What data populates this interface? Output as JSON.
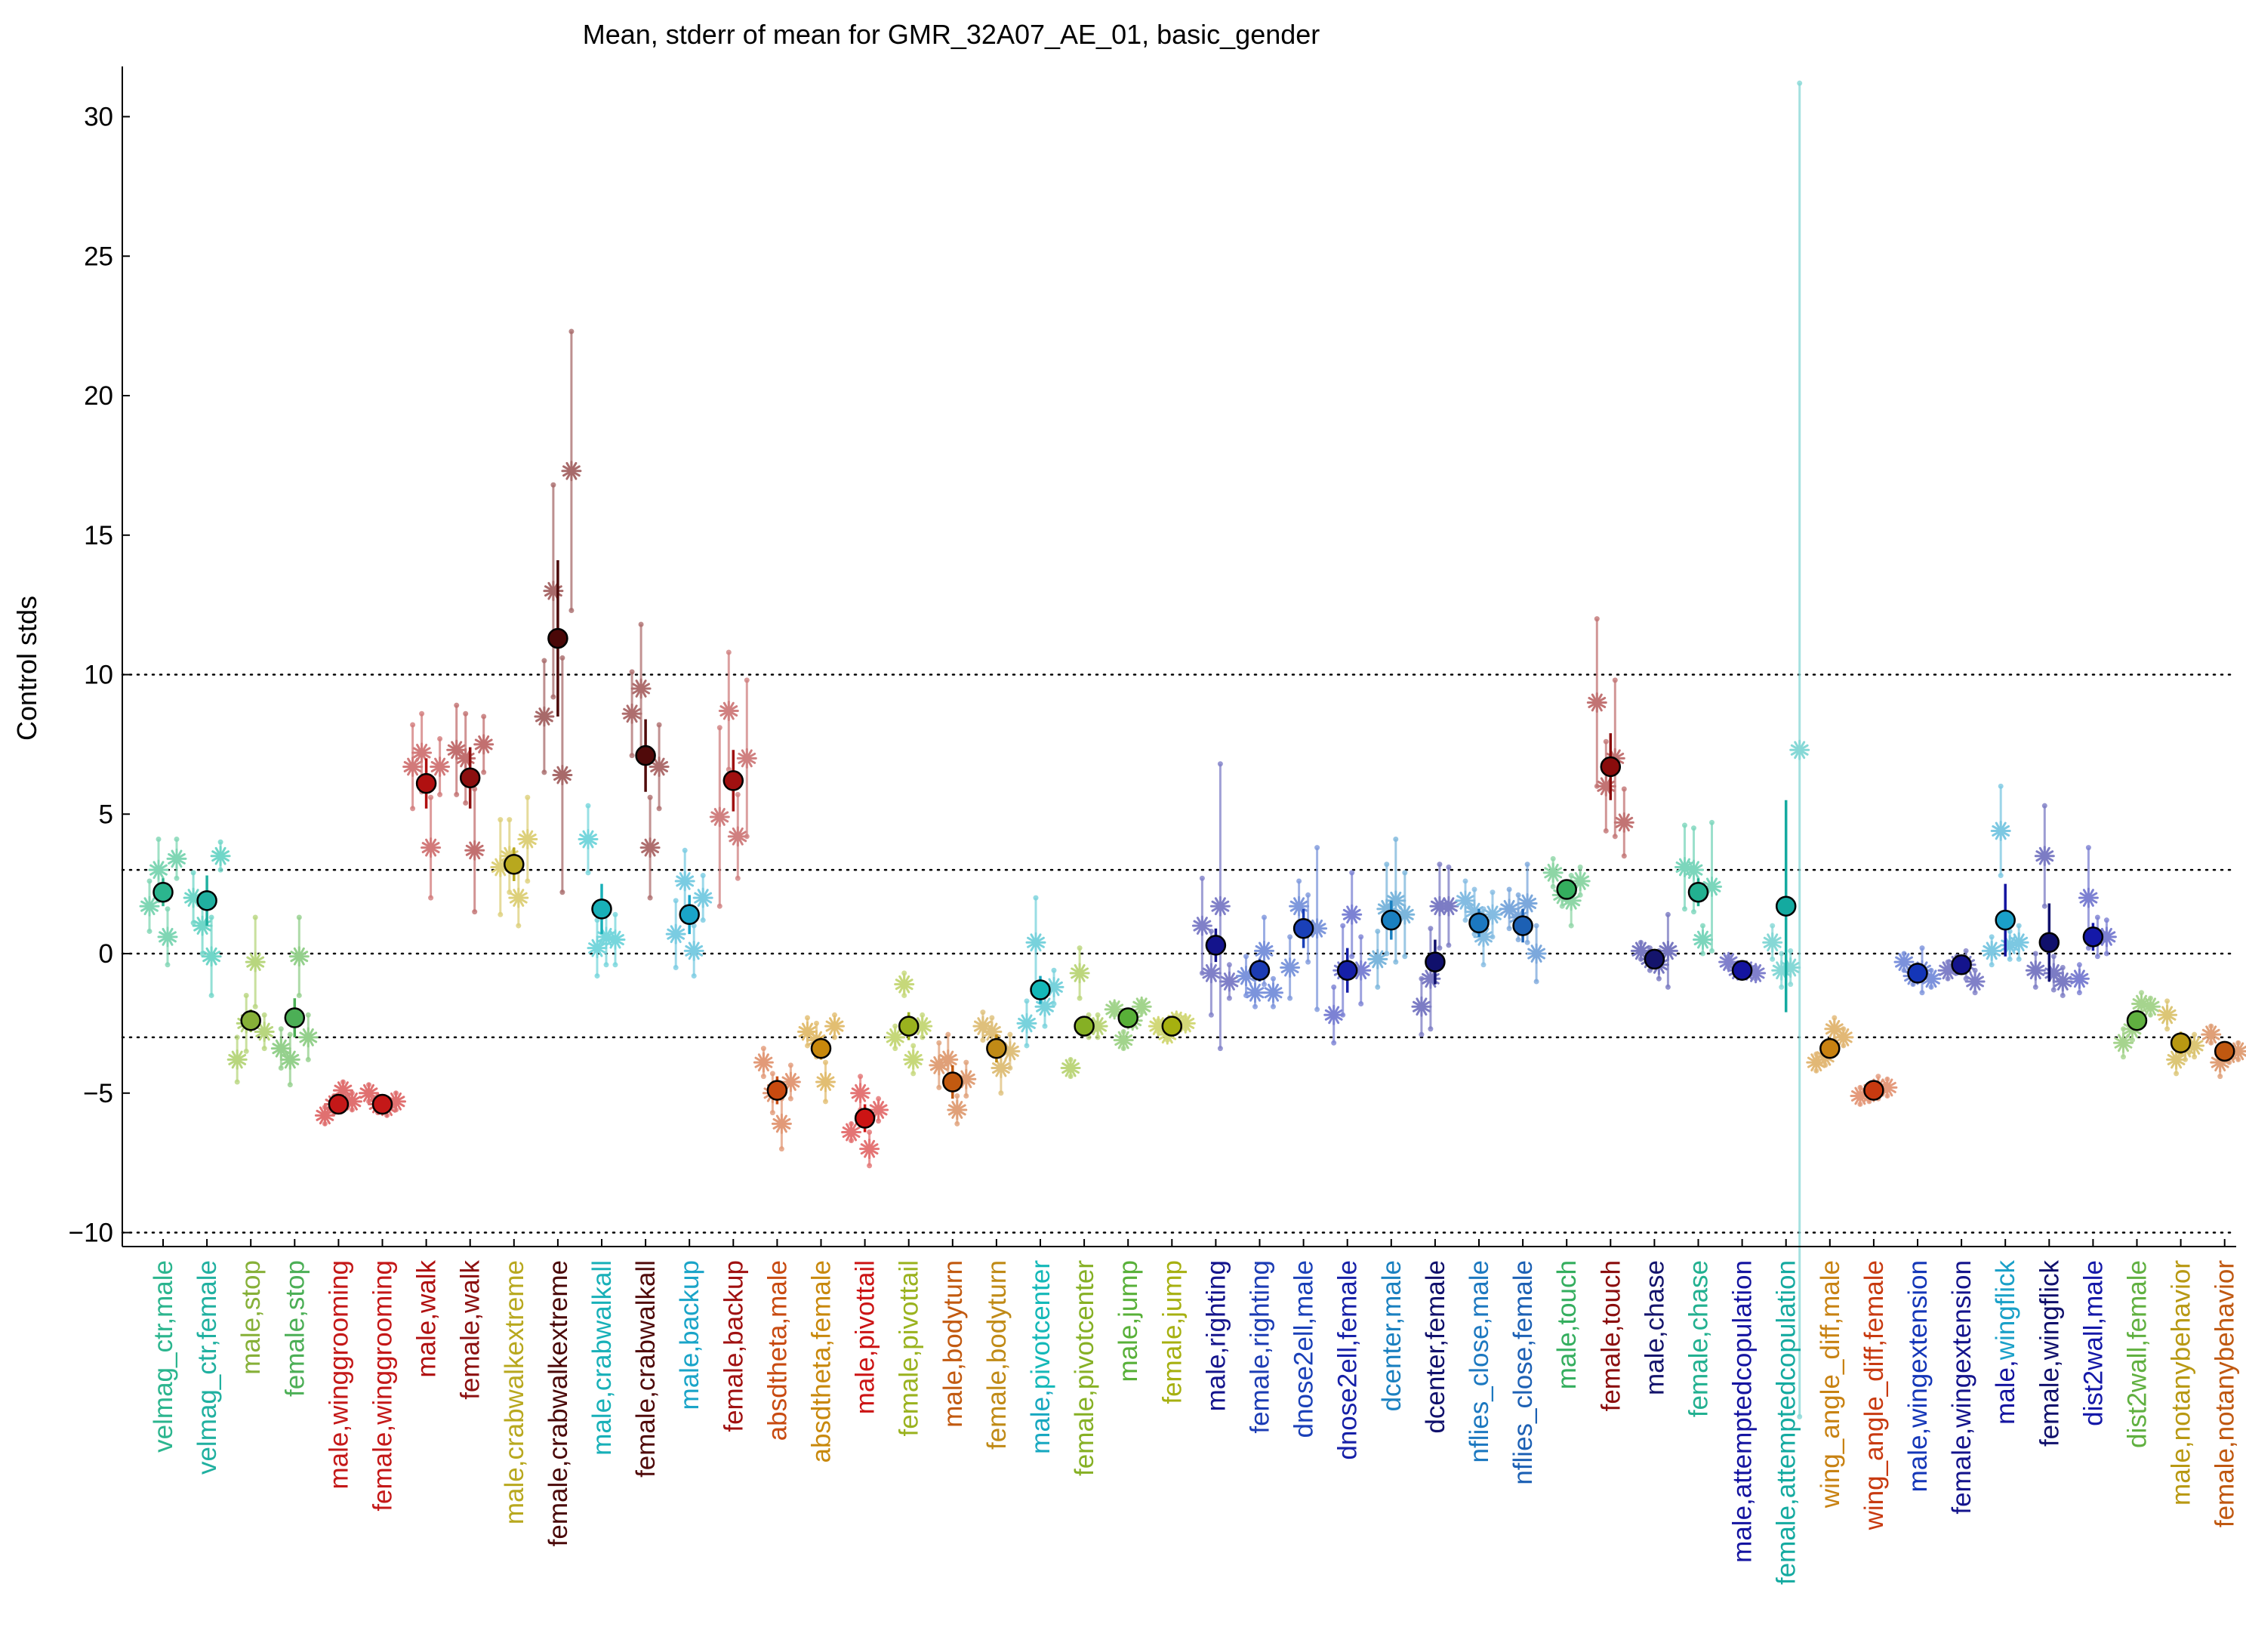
{
  "chart_data": {
    "type": "scatter",
    "title": "Mean, stderr of mean for GMR_32A07_AE_01, basic_gender",
    "xlabel": "",
    "ylabel": "Control stds",
    "ylim": [
      -10.5,
      31.8
    ],
    "yticks": [
      -10,
      -5,
      0,
      5,
      10,
      15,
      20,
      25,
      30
    ],
    "reference_lines": [
      -10,
      -3,
      0,
      3,
      10
    ],
    "grid": false,
    "categories": [
      {
        "label": [
          "velmag_ctr,male"
        ],
        "colors": [
          "#2bb58e"
        ],
        "mean": 2.2,
        "sem": 0.5,
        "sample_color": "#7fd6b4",
        "sample_means": [
          1.7,
          3.0,
          0.6,
          3.4
        ],
        "sample_err": [
          0.9,
          1.1,
          1.0,
          0.7
        ]
      },
      {
        "label": [
          "velmag_ctr,female"
        ],
        "colors": [
          "#20b0a0"
        ],
        "mean": 1.9,
        "sem": 0.9,
        "sample_color": "#70d6c8",
        "sample_means": [
          2.0,
          1.0,
          -0.1,
          3.5
        ],
        "sample_err": [
          0.9,
          1.0,
          1.4,
          0.5
        ]
      },
      {
        "label": [
          "male,stop"
        ],
        "colors": [
          "#86b038"
        ],
        "mean": -2.4,
        "sem": 0.4,
        "sample_color": "#b8d67e",
        "sample_means": [
          -3.8,
          -2.5,
          -0.3,
          -2.8
        ],
        "sample_err": [
          0.8,
          1.0,
          1.6,
          0.6
        ]
      },
      {
        "label": [
          "female,stop"
        ],
        "colors": [
          "#4caf56"
        ],
        "mean": -2.3,
        "sem": 0.7,
        "sample_color": "#94d08c",
        "sample_means": [
          -3.4,
          -3.8,
          -0.1,
          -3.0
        ],
        "sample_err": [
          0.7,
          0.9,
          1.4,
          0.8
        ]
      },
      {
        "label": [
          "male,winggrooming"
        ],
        "colors": [
          "#c41818"
        ],
        "mean": -5.4,
        "sem": 0.2,
        "sample_color": "#e07070",
        "sample_means": [
          -5.8,
          -5.4,
          -4.9,
          -5.3
        ],
        "sample_err": [
          0.3,
          0.3,
          0.3,
          0.3
        ]
      },
      {
        "label": [
          "female,winggrooming"
        ],
        "colors": [
          "#c41818"
        ],
        "mean": -5.4,
        "sem": 0.2,
        "sample_color": "#e07070",
        "sample_means": [
          -5.0,
          -5.4,
          -5.5,
          -5.3
        ],
        "sample_err": [
          0.3,
          0.3,
          0.3,
          0.3
        ]
      },
      {
        "label": [
          "male,walk"
        ],
        "colors": [
          "#b01010"
        ],
        "mean": 6.1,
        "sem": 0.9,
        "sample_color": "#d27a7a",
        "sample_means": [
          6.7,
          7.2,
          3.8,
          6.7
        ],
        "sample_err": [
          1.5,
          1.4,
          1.8,
          1.0
        ]
      },
      {
        "label": [
          "female,walk"
        ],
        "colors": [
          "#8c1010"
        ],
        "mean": 6.3,
        "sem": 1.1,
        "sample_color": "#c27070",
        "sample_means": [
          7.3,
          7.0,
          3.7,
          7.5
        ],
        "sample_err": [
          1.6,
          1.6,
          2.2,
          1.0
        ]
      },
      {
        "label": [
          "male,crabwalkextreme"
        ],
        "colors": [
          "#b8a81e"
        ],
        "mean": 3.2,
        "sem": 0.6,
        "sample_color": "#ddd07a",
        "sample_means": [
          3.1,
          3.5,
          2.0,
          4.1
        ],
        "sample_err": [
          1.7,
          1.3,
          1.0,
          1.5
        ]
      },
      {
        "label": [
          "female,crabwalkextreme"
        ],
        "colors": [
          "#4a0808"
        ],
        "mean": 11.3,
        "sem": 2.8,
        "sample_color": "#a86a6a",
        "sample_means": [
          8.5,
          13.0,
          6.4,
          17.3
        ],
        "sample_err": [
          2.0,
          3.8,
          4.2,
          5.0
        ]
      },
      {
        "label": [
          "male,crabwalkall"
        ],
        "colors": [
          "#18b0b8"
        ],
        "mean": 1.6,
        "sem": 0.9,
        "sample_color": "#76d6dc",
        "sample_means": [
          4.1,
          0.2,
          0.6,
          0.5
        ],
        "sample_err": [
          1.2,
          1.0,
          1.0,
          0.9
        ]
      },
      {
        "label": [
          "female,crabwalkall"
        ],
        "colors": [
          "#500a0a"
        ],
        "mean": 7.1,
        "sem": 1.3,
        "sample_color": "#ae6e6e",
        "sample_means": [
          8.6,
          9.5,
          3.8,
          6.7
        ],
        "sample_err": [
          1.5,
          2.3,
          1.8,
          1.5
        ]
      },
      {
        "label": [
          "male,backup"
        ],
        "colors": [
          "#1aa4c8"
        ],
        "mean": 1.4,
        "sem": 0.7,
        "sample_color": "#7acce2",
        "sample_means": [
          0.7,
          2.6,
          0.1,
          2.0
        ],
        "sample_err": [
          1.2,
          1.1,
          0.9,
          0.8
        ]
      },
      {
        "label": [
          "female,backup"
        ],
        "colors": [
          "#a01010"
        ],
        "mean": 6.2,
        "sem": 1.1,
        "sample_color": "#d08080",
        "sample_means": [
          4.9,
          8.7,
          4.2,
          7.0
        ],
        "sample_err": [
          3.2,
          2.1,
          1.5,
          2.8
        ]
      },
      {
        "label": [
          "absdtheta,male"
        ],
        "colors": [
          "#c84a10"
        ],
        "mean": -4.9,
        "sem": 0.5,
        "sample_color": "#e29a78",
        "sample_means": [
          -3.9,
          -5.0,
          -6.1,
          -4.6
        ],
        "sample_err": [
          0.5,
          0.7,
          0.9,
          0.6
        ]
      },
      {
        "label": [
          "absdtheta,female"
        ],
        "colors": [
          "#c8880c"
        ],
        "mean": -3.4,
        "sem": 0.4,
        "sample_color": "#e2be72",
        "sample_means": [
          -2.8,
          -3.1,
          -4.6,
          -2.6
        ],
        "sample_err": [
          0.5,
          0.6,
          0.7,
          0.4
        ]
      },
      {
        "label": [
          "male,pivottail"
        ],
        "colors": [
          "#cc1414"
        ],
        "mean": -5.9,
        "sem": 0.5,
        "sample_color": "#e47474",
        "sample_means": [
          -6.4,
          -5.0,
          -7.0,
          -5.6
        ],
        "sample_err": [
          0.3,
          0.6,
          0.6,
          0.4
        ]
      },
      {
        "label": [
          "female,pivottail"
        ],
        "colors": [
          "#9ab21e"
        ],
        "mean": -2.6,
        "sem": 0.5,
        "sample_color": "#c6d87a",
        "sample_means": [
          -3.0,
          -1.1,
          -3.8,
          -2.6
        ],
        "sample_err": [
          0.4,
          0.4,
          0.5,
          0.4
        ]
      },
      {
        "label": [
          "male,bodyturn"
        ],
        "colors": [
          "#c25a10"
        ],
        "mean": -4.6,
        "sem": 0.6,
        "sample_color": "#e0a078",
        "sample_means": [
          -4.0,
          -3.8,
          -5.6,
          -4.5
        ],
        "sample_err": [
          0.8,
          0.9,
          0.5,
          0.6
        ]
      },
      {
        "label": [
          "female,bodyturn"
        ],
        "colors": [
          "#c08a16"
        ],
        "mean": -3.4,
        "sem": 0.5,
        "sample_color": "#dfc07c",
        "sample_means": [
          -2.6,
          -2.8,
          -4.1,
          -3.5
        ],
        "sample_err": [
          0.5,
          0.5,
          0.9,
          0.6
        ]
      },
      {
        "label": [
          "male,",
          "pivotcenter"
        ],
        "colors": [
          "#18a8c0",
          "#14b8b8"
        ],
        "mean": -1.3,
        "sem": 0.5,
        "sample_color": "#78d2dc",
        "sample_means": [
          -2.5,
          0.4,
          -1.9,
          -1.2
        ],
        "sample_err": [
          0.8,
          1.6,
          0.7,
          0.6
        ]
      },
      {
        "label": [
          "female,pivotcenter"
        ],
        "colors": [
          "#86b024"
        ],
        "mean": -2.6,
        "sem": 0.3,
        "sample_color": "#bcd67c",
        "sample_means": [
          -4.1,
          -0.7,
          -2.6,
          -2.6
        ],
        "sample_err": [
          0.3,
          0.9,
          0.4,
          0.4
        ]
      },
      {
        "label": [
          "male,jump"
        ],
        "colors": [
          "#58b038"
        ],
        "mean": -2.3,
        "sem": 0.2,
        "sample_color": "#a2d48c",
        "sample_means": [
          -2.0,
          -3.1,
          -2.4,
          -1.9
        ],
        "sample_err": [
          0.2,
          0.3,
          0.2,
          0.2
        ]
      },
      {
        "label": [
          "female,jump"
        ],
        "colors": [
          "#a6b010"
        ],
        "mean": -2.6,
        "sem": 0.2,
        "sample_color": "#d2d878",
        "sample_means": [
          -2.6,
          -2.9,
          -2.4,
          -2.5
        ],
        "sample_err": [
          0.2,
          0.2,
          0.2,
          0.2
        ]
      },
      {
        "label": [
          "male,righting"
        ],
        "colors": [
          "#14148c"
        ],
        "mean": 0.3,
        "sem": 0.6,
        "sample_color": "#8080c8",
        "sample_means": [
          1.0,
          -0.7,
          1.7,
          -1.0
        ],
        "sample_err": [
          1.7,
          1.5,
          5.1,
          0.6
        ]
      },
      {
        "label": [
          "female,righting"
        ],
        "colors": [
          "#1c3cb4"
        ],
        "mean": -0.6,
        "sem": 0.4,
        "sample_color": "#7c94dc",
        "sample_means": [
          -0.8,
          -1.4,
          0.1,
          -1.4
        ],
        "sample_err": [
          0.7,
          0.5,
          1.2,
          0.5
        ]
      },
      {
        "label": [
          "dnose2ell,male"
        ],
        "colors": [
          "#1a40b8"
        ],
        "mean": 0.9,
        "sem": 0.7,
        "sample_color": "#7e98dc",
        "sample_means": [
          -0.5,
          1.7,
          0.9,
          0.9
        ],
        "sample_err": [
          1.1,
          0.9,
          1.2,
          2.9
        ]
      },
      {
        "label": [
          "dnose2ell,female"
        ],
        "colors": [
          "#1620a8"
        ],
        "mean": -0.6,
        "sem": 0.8,
        "sample_color": "#7c82d4",
        "sample_means": [
          -2.2,
          -0.6,
          1.4,
          -0.6
        ],
        "sample_err": [
          1.0,
          1.6,
          1.5,
          1.2
        ]
      },
      {
        "label": [
          "dcenter,male"
        ],
        "colors": [
          "#1a80c0"
        ],
        "mean": 1.2,
        "sem": 0.7,
        "sample_color": "#7cb6dc",
        "sample_means": [
          -0.2,
          1.6,
          1.9,
          1.4
        ],
        "sample_err": [
          1.0,
          1.6,
          2.2,
          1.5
        ]
      },
      {
        "label": [
          "dcenter,female"
        ],
        "colors": [
          "#10106c"
        ],
        "mean": -0.3,
        "sem": 0.8,
        "sample_color": "#7c7cc4",
        "sample_means": [
          -1.9,
          -0.9,
          1.7,
          1.7
        ],
        "sample_err": [
          1.0,
          1.8,
          1.5,
          1.4
        ]
      },
      {
        "label": [
          "nflies_close,male"
        ],
        "colors": [
          "#1c78c0"
        ],
        "mean": 1.1,
        "sem": 0.5,
        "sample_color": "#84bce2",
        "sample_means": [
          1.9,
          1.5,
          0.6,
          1.4
        ],
        "sample_err": [
          0.7,
          0.8,
          1.0,
          0.8
        ]
      },
      {
        "label": [
          "nflies_close,female"
        ],
        "colors": [
          "#1c60b4"
        ],
        "mean": 1.0,
        "sem": 0.6,
        "sample_color": "#7ca8dc",
        "sample_means": [
          1.6,
          1.3,
          1.8,
          0.0
        ],
        "sample_err": [
          0.7,
          0.8,
          1.4,
          1.0
        ]
      },
      {
        "label": [
          "male,touch"
        ],
        "colors": [
          "#34ae5e"
        ],
        "mean": 2.3,
        "sem": 0.3,
        "sample_color": "#8ed6a6",
        "sample_means": [
          2.9,
          2.1,
          1.9,
          2.6
        ],
        "sample_err": [
          0.5,
          0.4,
          0.9,
          0.5
        ]
      },
      {
        "label": [
          "female,touch"
        ],
        "colors": [
          "#8a0c0c"
        ],
        "mean": 6.7,
        "sem": 1.2,
        "sample_color": "#c27474",
        "sample_means": [
          9.0,
          6.0,
          7.0,
          4.7
        ],
        "sample_err": [
          3.0,
          1.6,
          2.8,
          1.2
        ]
      },
      {
        "label": [
          "male,chase"
        ],
        "colors": [
          "#14146c"
        ],
        "mean": -0.2,
        "sem": 0.3,
        "sample_color": "#7878c0",
        "sample_means": [
          0.1,
          -0.2,
          -0.4,
          0.1
        ],
        "sample_err": [
          0.3,
          0.4,
          0.5,
          1.3
        ]
      },
      {
        "label": [
          "female,chase"
        ],
        "colors": [
          "#22b090"
        ],
        "mean": 2.2,
        "sem": 0.5,
        "sample_color": "#7cd6bc",
        "sample_means": [
          3.1,
          3.0,
          0.5,
          2.4
        ],
        "sample_err": [
          1.5,
          1.5,
          0.5,
          2.3
        ]
      },
      {
        "label": [
          "male,attemptedcopulation"
        ],
        "colors": [
          "#1414a0"
        ],
        "mean": -0.6,
        "sem": 0.2,
        "sample_color": "#8080cc",
        "sample_means": [
          -0.3,
          -0.6,
          -0.6,
          -0.7
        ],
        "sample_err": [
          0.2,
          0.2,
          0.2,
          0.2
        ]
      },
      {
        "label": [
          "female,attemptedcopulation"
        ],
        "colors": [
          "#14aaa0"
        ],
        "mean": 1.7,
        "sem": 3.8,
        "sample_color": "#86d8d6",
        "sample_means": [
          0.4,
          -0.6,
          -0.5,
          7.3
        ],
        "sample_err": [
          0.6,
          0.6,
          0.6,
          23.9
        ]
      },
      {
        "label": [
          "wing_angle_diff,male"
        ],
        "colors": [
          "#c88212"
        ],
        "mean": -3.4,
        "sem": 0.3,
        "sample_color": "#e2b876",
        "sample_means": [
          -3.9,
          -3.7,
          -2.7,
          -3.0
        ],
        "sample_err": [
          0.3,
          0.3,
          0.4,
          0.3
        ]
      },
      {
        "label": [
          "wing_angle_diff,female"
        ],
        "colors": [
          "#c83a10"
        ],
        "mean": -4.9,
        "sem": 0.2,
        "sample_color": "#e49a7c",
        "sample_means": [
          -5.1,
          -5.0,
          -4.8,
          -4.8
        ],
        "sample_err": [
          0.3,
          0.3,
          0.4,
          0.3
        ]
      },
      {
        "label": [
          "male,wingextension"
        ],
        "colors": [
          "#1436b8"
        ],
        "mean": -0.7,
        "sem": 0.2,
        "sample_color": "#7c92dc",
        "sample_means": [
          -0.3,
          -0.8,
          -0.6,
          -0.9
        ],
        "sample_err": [
          0.3,
          0.3,
          0.8,
          0.3
        ]
      },
      {
        "label": [
          "female,wingextension"
        ],
        "colors": [
          "#14148c"
        ],
        "mean": -0.4,
        "sem": 0.3,
        "sample_color": "#8080c8",
        "sample_means": [
          -0.6,
          -0.4,
          -0.4,
          -1.0
        ],
        "sample_err": [
          0.3,
          0.3,
          0.5,
          0.4
        ]
      },
      {
        "label": [
          "male,",
          "wingflick"
        ],
        "colors": [
          "#1414a0",
          "#1aa0c8"
        ],
        "mean": 1.2,
        "sem": 1.3,
        "sample_color": "#7cc8e2",
        "sample_means": [
          0.1,
          4.4,
          0.3,
          0.4
        ],
        "sample_err": [
          0.5,
          1.6,
          0.5,
          0.6
        ]
      },
      {
        "label": [
          "female,wingflick"
        ],
        "colors": [
          "#10106c"
        ],
        "mean": 0.4,
        "sem": 1.4,
        "sample_color": "#7c7cc4",
        "sample_means": [
          -0.6,
          3.5,
          -0.7,
          -1.0
        ],
        "sample_err": [
          0.6,
          1.8,
          0.6,
          0.5
        ]
      },
      {
        "label": [
          "dist2wall,male"
        ],
        "colors": [
          "#1418a8"
        ],
        "mean": 0.6,
        "sem": 0.5,
        "sample_color": "#7c80d2",
        "sample_means": [
          -0.9,
          2.0,
          0.6,
          0.6
        ],
        "sample_err": [
          0.5,
          1.8,
          0.7,
          0.6
        ]
      },
      {
        "label": [
          "dist2wall,female"
        ],
        "colors": [
          "#60b040"
        ],
        "mean": -2.4,
        "sem": 0.3,
        "sample_color": "#a6d48e",
        "sample_means": [
          -3.2,
          -2.7,
          -1.8,
          -1.9
        ],
        "sample_err": [
          0.5,
          0.4,
          0.4,
          0.3
        ]
      },
      {
        "label": [
          "male,notanybehavior"
        ],
        "colors": [
          "#b89812"
        ],
        "mean": -3.2,
        "sem": 0.4,
        "sample_color": "#dcc676",
        "sample_means": [
          -2.2,
          -3.8,
          -3.4,
          -3.3
        ],
        "sample_err": [
          0.5,
          0.5,
          0.4,
          0.4
        ]
      },
      {
        "label": [
          "female,notanybehavior"
        ],
        "colors": [
          "#c05810"
        ],
        "mean": -3.5,
        "sem": 0.3,
        "sample_color": "#e0a078",
        "sample_means": [
          -2.9,
          -3.9,
          -3.6,
          -3.5
        ],
        "sample_err": [
          0.3,
          0.5,
          0.3,
          0.3
        ]
      }
    ]
  }
}
